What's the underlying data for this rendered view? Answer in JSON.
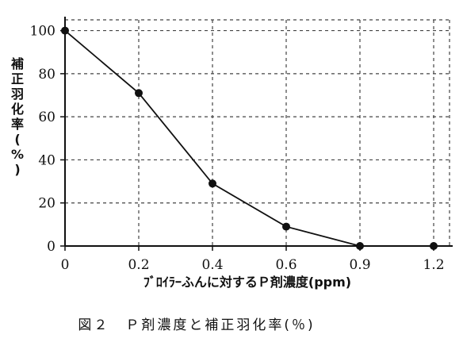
{
  "chart_data": {
    "type": "line",
    "x_tick_labels": [
      "0",
      "0.2",
      "0.4",
      "0.6",
      "0.9",
      "1.2"
    ],
    "y_ticks": [
      0,
      20,
      40,
      60,
      80,
      100
    ],
    "ylim": [
      0,
      105
    ],
    "series": [
      {
        "values": [
          100,
          71,
          29,
          9,
          0,
          0
        ]
      }
    ],
    "xlabel": "ﾌﾞﾛｲﾗｰふんに対するＰ剤濃度(ppm)",
    "ylabel": "補正羽化率(%)",
    "grid": true,
    "caption": "図２　Ｐ剤濃度と補正羽化率(％)",
    "colors": {
      "line": "#111111",
      "grid": "#444444"
    }
  }
}
